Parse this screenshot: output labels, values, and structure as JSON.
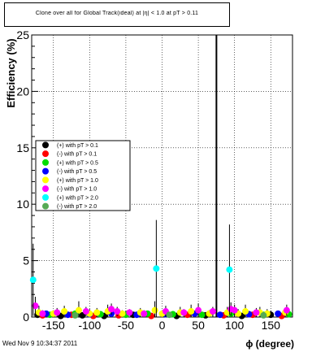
{
  "title": "Clone  over all for Global Track(ideal) at |η| < 1.0 at pT > 0.11",
  "footer": "Wed Nov  9 10:34:37 2011",
  "chart_data": {
    "type": "scatter",
    "xlabel": "ϕ (degree)",
    "ylabel": "Efficiency (%)",
    "xlim": [
      -180,
      180
    ],
    "ylim": [
      0,
      25
    ],
    "x_ticks": [
      -150,
      -100,
      -50,
      0,
      50,
      100,
      150
    ],
    "y_ticks": [
      0,
      5,
      10,
      15,
      20,
      25
    ],
    "grid": true,
    "legend_position": "left",
    "vertical_line": 75,
    "series": [
      {
        "name": "(+) with pT > 0.1",
        "color": "#000000",
        "x": [
          -172,
          -140,
          -110,
          -80,
          -40,
          20,
          60,
          110,
          150
        ],
        "y": [
          0.2,
          0.1,
          0.15,
          0.1,
          0.2,
          0.1,
          0.15,
          0.1,
          0.2
        ],
        "err": [
          0,
          0,
          0,
          0,
          0,
          0,
          0,
          0,
          0
        ]
      },
      {
        "name": "(-) with pT > 0.1",
        "color": "#ff0000",
        "x": [
          -165,
          -125,
          -95,
          -60,
          -15,
          35,
          85,
          125,
          165
        ],
        "y": [
          0.15,
          0.2,
          0.1,
          0.15,
          0.1,
          0.2,
          0.15,
          0.2,
          0.1
        ],
        "err": [
          0,
          0,
          0,
          0,
          0,
          0,
          0,
          0,
          0
        ]
      },
      {
        "name": "(+) with pT > 0.5",
        "color": "#00dd00",
        "x": [
          -155,
          -120,
          -85,
          -50,
          -20,
          15,
          55,
          95,
          140,
          175
        ],
        "y": [
          0.2,
          0.3,
          0.25,
          0.2,
          0.3,
          0.25,
          0.2,
          0.3,
          0.2,
          0.25
        ],
        "err": [
          0,
          0,
          0,
          0,
          0,
          0,
          0,
          0,
          0,
          0
        ]
      },
      {
        "name": "(-) with pT > 0.5",
        "color": "#0000ff",
        "x": [
          -160,
          -130,
          -100,
          -70,
          -35,
          5,
          45,
          80,
          120,
          160
        ],
        "y": [
          0.3,
          0.2,
          0.25,
          0.3,
          0.2,
          0.25,
          0.3,
          0.2,
          0.25,
          0.3
        ],
        "err": [
          0,
          0,
          0,
          0,
          0,
          0,
          0,
          0,
          0,
          0
        ]
      },
      {
        "name": "(+) with pT > 1.0",
        "color": "#ffff00",
        "x": [
          -170,
          -150,
          -135,
          -115,
          -100,
          -90,
          -75,
          -55,
          -30,
          -10,
          0,
          25,
          40,
          65,
          90,
          105,
          115,
          135,
          145,
          170
        ],
        "y": [
          0.4,
          0.3,
          0.5,
          0.6,
          0.3,
          0.4,
          0.5,
          0.3,
          0.4,
          0.6,
          0.3,
          0.4,
          0.5,
          0.3,
          0.4,
          0.3,
          0.5,
          0.4,
          0.3,
          0.4
        ],
        "err": [
          0.6,
          0.3,
          0.5,
          0.8,
          0.4,
          0.4,
          0.6,
          0.3,
          0.4,
          0.8,
          0.3,
          0.5,
          0.6,
          0.3,
          0.5,
          0.4,
          0.6,
          0.5,
          0.4,
          0.4
        ]
      },
      {
        "name": "(-) with pT > 1.0",
        "color": "#ff00ff",
        "x": [
          -175,
          -165,
          -145,
          -105,
          -70,
          -62,
          -45,
          -25,
          5,
          30,
          50,
          70,
          95,
          100,
          130,
          172
        ],
        "y": [
          1.0,
          0.3,
          0.4,
          0.5,
          0.7,
          0.5,
          0.4,
          0.3,
          0.5,
          0.4,
          0.6,
          0.5,
          0.7,
          0.6,
          0.4,
          0.6
        ],
        "err": [
          0.8,
          0.3,
          0.4,
          0.4,
          0.5,
          0.4,
          0.3,
          0.3,
          0.5,
          0.3,
          0.6,
          0.4,
          0.6,
          0.5,
          0.4,
          0.5
        ]
      },
      {
        "name": "(+) with pT > 2.0",
        "color": "#00ffff",
        "x": [
          -178,
          -8,
          93
        ],
        "y": [
          3.3,
          4.3,
          4.2
        ],
        "err": [
          3.2,
          4.3,
          4.0
        ]
      },
      {
        "name": "(-) with pT > 2.0",
        "color": "#55aa55",
        "x": [
          -120,
          10,
          140
        ],
        "y": [
          0.15,
          0.2,
          0.15
        ],
        "err": [
          0,
          0,
          0
        ]
      }
    ]
  }
}
